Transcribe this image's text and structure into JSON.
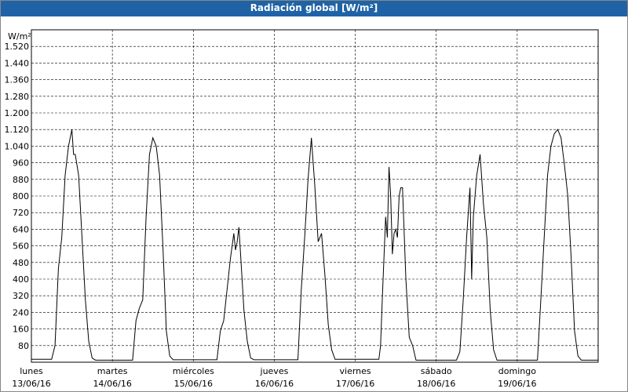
{
  "chart_data": {
    "type": "line",
    "title": "Radiación global [W/m²]",
    "y_label": "W/m²",
    "ylim": [
      0,
      1600
    ],
    "yticks": [
      80,
      160,
      240,
      320,
      400,
      480,
      560,
      640,
      720,
      800,
      880,
      960,
      {
        "value": 1040,
        "label": "1.040"
      },
      {
        "value": 1120,
        "label": "1.120"
      },
      {
        "value": 1200,
        "label": "1.200"
      },
      {
        "value": 1280,
        "label": "1.280"
      },
      {
        "value": 1360,
        "label": "1.360"
      },
      {
        "value": 1440,
        "label": "1.440"
      },
      {
        "value": 1520,
        "label": "1.520"
      }
    ],
    "xlim": [
      0,
      168
    ],
    "xticks": [
      {
        "value": 0,
        "label": "lunes",
        "date": "13/06/16"
      },
      {
        "value": 24,
        "label": "martes",
        "date": "14/06/16"
      },
      {
        "value": 48,
        "label": "miércoles",
        "date": "15/06/16"
      },
      {
        "value": 72,
        "label": "jueves",
        "date": "16/06/16"
      },
      {
        "value": 96,
        "label": "viernes",
        "date": "17/06/16"
      },
      {
        "value": 120,
        "label": "sábado",
        "date": "18/06/16"
      },
      {
        "value": 144,
        "label": "domingo",
        "date": "19/06/16"
      }
    ],
    "grid": true,
    "series": [
      {
        "color": "#000000",
        "x": [
          0,
          6,
          7,
          8,
          9,
          10,
          11,
          12,
          12.5,
          13,
          14,
          15,
          16,
          17,
          18,
          19,
          30,
          31,
          32,
          33,
          34,
          35,
          36,
          37,
          38,
          39,
          40,
          41,
          42,
          55,
          56,
          57,
          58,
          59,
          60,
          60.5,
          61,
          61.5,
          62,
          63,
          64,
          65,
          66,
          79,
          80,
          81,
          82,
          83,
          84,
          85,
          85.5,
          86,
          87,
          88,
          89,
          90,
          103,
          103.5,
          104,
          105,
          105.5,
          106,
          106.5,
          107,
          107.5,
          108,
          108.5,
          109,
          109.5,
          110,
          111,
          112,
          113,
          114,
          126,
          127,
          128,
          129,
          130,
          130.5,
          131,
          132,
          133,
          133.5,
          134,
          135,
          136,
          137,
          138,
          150,
          151,
          152,
          153,
          154,
          155,
          156,
          157,
          158,
          159,
          160,
          161,
          162,
          163,
          168
        ],
        "values": [
          14,
          14,
          80,
          450,
          600,
          900,
          1040,
          1120,
          1000,
          1000,
          900,
          600,
          300,
          100,
          20,
          10,
          10,
          200,
          260,
          300,
          700,
          1000,
          1080,
          1040,
          900,
          550,
          150,
          30,
          12,
          12,
          150,
          200,
          350,
          500,
          620,
          540,
          580,
          650,
          520,
          250,
          100,
          20,
          12,
          12,
          350,
          600,
          880,
          1080,
          850,
          580,
          600,
          620,
          420,
          180,
          60,
          14,
          14,
          80,
          300,
          700,
          600,
          940,
          800,
          520,
          620,
          640,
          600,
          800,
          840,
          840,
          400,
          120,
          80,
          10,
          10,
          50,
          300,
          600,
          840,
          400,
          700,
          900,
          1000,
          880,
          760,
          600,
          250,
          60,
          10,
          10,
          300,
          600,
          900,
          1040,
          1100,
          1120,
          1080,
          950,
          800,
          500,
          150,
          30,
          10,
          10
        ]
      }
    ]
  }
}
